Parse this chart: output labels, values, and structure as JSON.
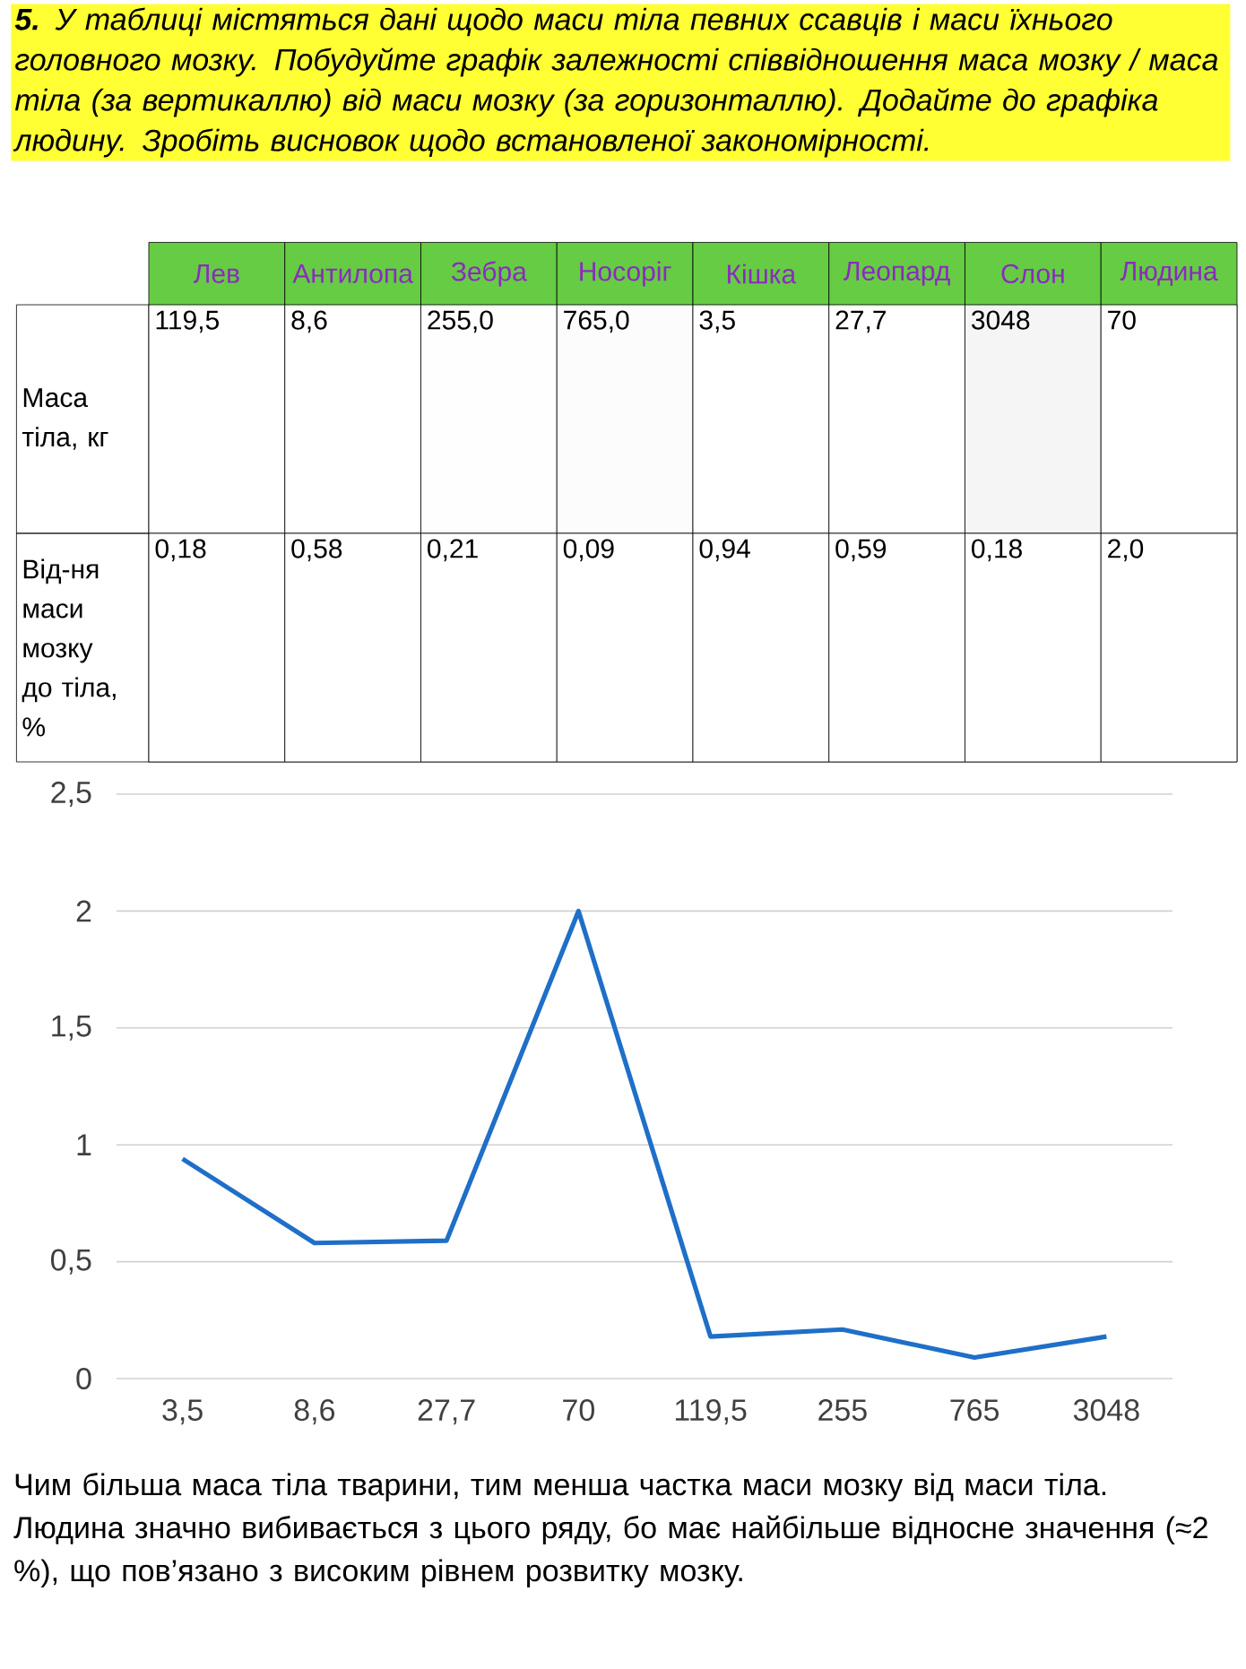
{
  "chart_data": [
    {
      "type": "heatmap",
      "title": "**5.** У таблиці містяться дані щодо маси тіла певних ссавців і маси їхнього головного мозку. Побудуйте графік залежності співвідношення маса мозку / маса тіла (за вертикаллю) від маси мозку (за горизонталлю). Додайте до графіка людину. Зробіть висновок щодо встановленої закономірності.",
      "categories": [
        "Лев",
        "Антилопа",
        "Зебра",
        "Носоріг",
        "Кішка",
        "Леопард",
        "Слон",
        "Людина"
      ],
      "y_categories": [
        "Маса тіла, кг",
        "Від-ня маси мозку до тіла, %"
      ],
      "cells": [
        [
          119.5,
          8.6,
          255.0,
          765.0,
          3.5,
          27.7,
          3048,
          70
        ],
        [
          0.18,
          0.58,
          0.21,
          0.09,
          0.94,
          0.59,
          0.18,
          2.0
        ]
      ],
      "cell_labels": [
        [
          "119,5",
          "8,6",
          "255,0",
          "765,0",
          "3,5",
          "27,7",
          "3048",
          "70"
        ],
        [
          "0,18",
          "0,58",
          "0,21",
          "0,09",
          "0,94",
          "0,59",
          "0,18",
          "2,0"
        ]
      ]
    },
    {
      "type": "line",
      "categories": [
        "3,5",
        "8,6",
        "27,7",
        "70",
        "119,5",
        "255",
        "765",
        "3048"
      ],
      "values": [
        0.94,
        0.58,
        0.59,
        2.0,
        0.18,
        0.21,
        0.09,
        0.18
      ],
      "color": "#1f6fc8",
      "ylim": [
        0,
        2.5
      ],
      "yticks": [
        0,
        {
          "value": 0.5,
          "label": "0,5"
        },
        1,
        {
          "value": 1.5,
          "label": "1,5"
        },
        2,
        {
          "value": 2.5,
          "label": "2,5"
        }
      ],
      "grid": "y",
      "annotations": [
        "Чим більша маса тіла тварини, тим менша частка маси мозку від маси тіла. Людина значно вибивається з цього ряду, бо має найбільше відносне значення (≈2 %), що пов’язано з високим рівнем розвитку мозку."
      ]
    }
  ]
}
